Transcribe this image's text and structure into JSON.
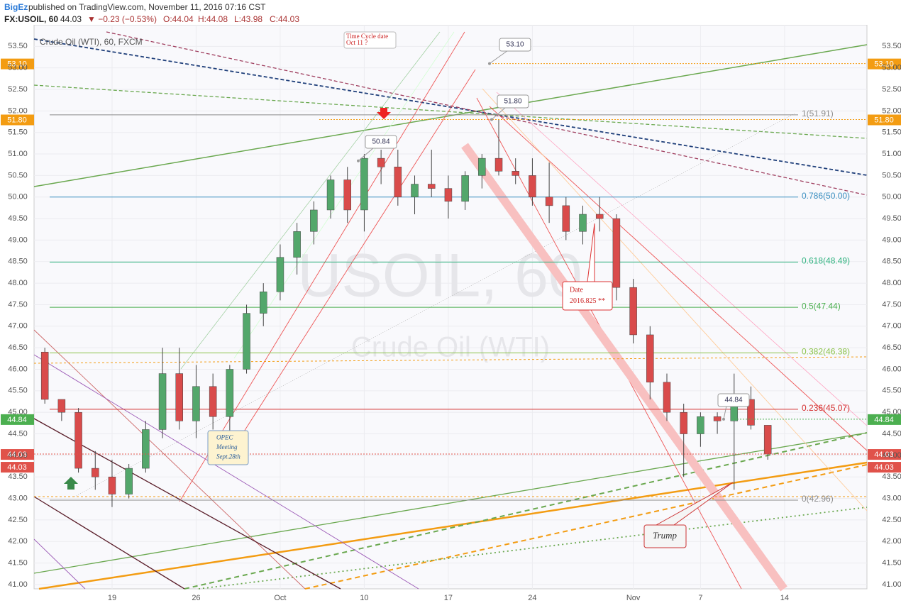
{
  "header": {
    "author": "BigEz",
    "published": "published on TradingView.com, November 11, 2016 07:16 CST",
    "symbol": "FX:USOIL, 60",
    "last": "44.03",
    "change": "▼ −0.23 (−0.53%)",
    "open": "O:44.04",
    "high": "H:44.08",
    "low": "L:43.98",
    "close": "C:44.03"
  },
  "chart_data": {
    "type": "candlestick",
    "legend": "Crude Oil (WTI), 60, FXCM",
    "watermark": "USOIL, 60",
    "watermark_sub": "Crude Oil (WTI)",
    "up_color": "#53a76b",
    "down_color": "#d94b4b",
    "x": [
      -4,
      -3,
      -2,
      -1,
      0,
      1,
      2,
      3,
      4,
      5,
      6,
      7,
      8,
      9,
      10,
      11,
      12,
      13,
      14,
      15,
      16,
      17,
      18,
      19,
      20,
      21,
      22,
      23,
      24,
      25,
      26,
      27,
      28,
      29,
      30,
      31,
      32,
      33,
      34,
      35,
      36,
      37,
      38,
      39
    ],
    "open": [
      46.4,
      45.3,
      45.0,
      43.7,
      43.5,
      43.1,
      43.7,
      44.6,
      45.9,
      44.8,
      45.6,
      44.9,
      46.0,
      47.3,
      47.8,
      48.6,
      49.2,
      49.7,
      50.4,
      49.7,
      50.9,
      50.7,
      50.0,
      50.3,
      50.2,
      49.9,
      50.5,
      50.9,
      50.6,
      50.5,
      50.0,
      49.8,
      49.2,
      49.6,
      49.5,
      47.9,
      46.8,
      45.7,
      45.0,
      44.5,
      44.9,
      44.8,
      45.3,
      44.7
    ],
    "high": [
      46.5,
      45.3,
      45.1,
      44.1,
      43.9,
      43.8,
      44.8,
      46.5,
      46.5,
      46.1,
      45.9,
      46.1,
      47.5,
      48.0,
      48.9,
      49.4,
      49.9,
      50.5,
      50.7,
      51.0,
      51.1,
      51.1,
      50.5,
      51.1,
      50.5,
      50.6,
      51.0,
      51.8,
      50.9,
      50.9,
      50.8,
      50.0,
      49.8,
      50.0,
      49.6,
      48.1,
      47.0,
      45.9,
      45.2,
      45.0,
      45.0,
      45.9,
      45.6,
      44.7
    ],
    "low": [
      45.2,
      44.8,
      43.6,
      43.2,
      42.8,
      43.0,
      43.6,
      44.4,
      44.6,
      44.4,
      44.6,
      44.5,
      45.9,
      47.0,
      47.6,
      48.2,
      48.9,
      49.5,
      49.4,
      49.2,
      50.3,
      49.8,
      49.6,
      50.0,
      49.5,
      49.7,
      50.2,
      50.5,
      50.3,
      49.8,
      49.4,
      49.0,
      48.9,
      49.2,
      47.6,
      46.6,
      45.3,
      44.8,
      43.5,
      44.2,
      44.5,
      43.2,
      44.6,
      43.9
    ],
    "close": [
      45.3,
      45.0,
      43.7,
      43.5,
      43.1,
      43.7,
      44.6,
      45.9,
      44.8,
      45.6,
      44.9,
      46.0,
      47.3,
      47.8,
      48.6,
      49.2,
      49.7,
      50.4,
      49.7,
      50.9,
      50.7,
      50.0,
      50.3,
      50.2,
      49.9,
      50.5,
      50.9,
      50.6,
      50.5,
      50.0,
      49.8,
      49.2,
      49.6,
      49.5,
      47.9,
      46.8,
      45.7,
      45.0,
      44.5,
      44.9,
      44.8,
      45.3,
      44.7,
      44.03
    ],
    "xlim": [
      -4.64,
      44.9
    ],
    "xticks": [
      {
        "value": 0,
        "label": "19"
      },
      {
        "value": 5,
        "label": "26"
      },
      {
        "value": 10,
        "label": "Oct"
      },
      {
        "value": 15,
        "label": "10"
      },
      {
        "value": 20,
        "label": "17"
      },
      {
        "value": 25,
        "label": "24"
      },
      {
        "value": 31,
        "label": "Nov"
      },
      {
        "value": 35,
        "label": "7"
      },
      {
        "value": 40,
        "label": "14"
      }
    ],
    "ylim": [
      40.9,
      54.0
    ],
    "yticks": [
      {
        "value": 41,
        "label": "41.00"
      },
      {
        "value": 41.5,
        "label": "41.50"
      },
      {
        "value": 42,
        "label": "42.00"
      },
      {
        "value": 42.5,
        "label": "42.50"
      },
      {
        "value": 43,
        "label": "43.00"
      },
      {
        "value": 43.5,
        "label": "43.50"
      },
      {
        "value": 44,
        "label": "44.00"
      },
      {
        "value": 44.5,
        "label": "44.50"
      },
      {
        "value": 45,
        "label": "45.00"
      },
      {
        "value": 45.5,
        "label": "45.50"
      },
      {
        "value": 46,
        "label": "46.00"
      },
      {
        "value": 46.5,
        "label": "46.50"
      },
      {
        "value": 47,
        "label": "47.00"
      },
      {
        "value": 47.5,
        "label": "47.50"
      },
      {
        "value": 48,
        "label": "48.00"
      },
      {
        "value": 48.5,
        "label": "48.50"
      },
      {
        "value": 49,
        "label": "49.00"
      },
      {
        "value": 49.5,
        "label": "49.50"
      },
      {
        "value": 50,
        "label": "50.00"
      },
      {
        "value": 50.5,
        "label": "50.50"
      },
      {
        "value": 51,
        "label": "51.00"
      },
      {
        "value": 51.5,
        "label": "51.50"
      },
      {
        "value": 52,
        "label": "52.00"
      },
      {
        "value": 52.5,
        "label": "52.50"
      },
      {
        "value": 53,
        "label": "53.00"
      },
      {
        "value": 53.5,
        "label": "53.50"
      }
    ],
    "grid": true,
    "fib_levels": [
      {
        "value": 51.91,
        "label": "1(51.91)",
        "color": "#8a8a8a"
      },
      {
        "value": 50.0,
        "label": "0.786(50.00)",
        "color": "#3a8fc0"
      },
      {
        "value": 48.49,
        "label": "0.618(48.49)",
        "color": "#2fb27f"
      },
      {
        "value": 47.44,
        "label": "0.5(47.44)",
        "color": "#4caf50"
      },
      {
        "value": 46.38,
        "label": "0.382(46.38)",
        "color": "#8bc34a"
      },
      {
        "value": 45.07,
        "label": "0.236(45.07)",
        "color": "#d32f2f"
      },
      {
        "value": 42.96,
        "label": "0(42.96)",
        "color": "#8a8a8a"
      }
    ],
    "price_markers": [
      {
        "value": 53.1,
        "label": "53.10",
        "color": "#f39c12"
      },
      {
        "value": 51.8,
        "label": "51.80",
        "color": "#f39c12"
      },
      {
        "value": 44.84,
        "label": "44.84",
        "color": "#4caf50"
      },
      {
        "value": 44.03,
        "label": "44.03",
        "color": "#e0524a"
      },
      {
        "value": 44.03,
        "label": "44.03",
        "color": "#e0524a"
      }
    ],
    "callouts": [
      {
        "value": 53.1,
        "label": "53.10"
      },
      {
        "value": 51.8,
        "label": "51.80"
      },
      {
        "value": 50.84,
        "label": "50.84"
      },
      {
        "value": 44.84,
        "label": "44.84"
      }
    ],
    "annotations": [
      {
        "lines": [
          "Time Cycle date",
          "Oct 11 ?"
        ]
      },
      {
        "lines": [
          "OPEC",
          "Meeting",
          "Sept.28th"
        ]
      },
      {
        "lines": [
          "Date",
          "2016.825 **"
        ]
      },
      {
        "lines": [
          "Trump"
        ]
      }
    ]
  }
}
